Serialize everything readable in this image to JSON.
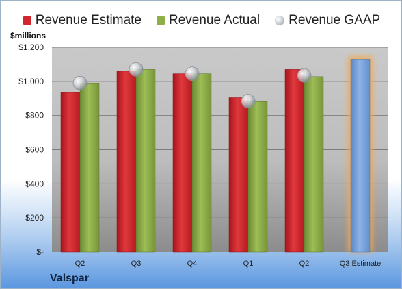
{
  "legend": {
    "estimate": "Revenue Estimate",
    "actual": "Revenue Actual",
    "gaap": "Revenue GAAP"
  },
  "units_label": "$millions",
  "company": "Valspar",
  "colors": {
    "estimate": "#d0262c",
    "actual": "#8fae4a",
    "gaap": "#b9bec6",
    "forecast": "#7aa3d9",
    "forecast_glow": "#f7a74a"
  },
  "chart_data": {
    "type": "bar",
    "categories": [
      "Q2",
      "Q3",
      "Q4",
      "Q1",
      "Q2",
      "Q3 Estimate"
    ],
    "ylim": [
      0,
      1200
    ],
    "yticks": [
      0,
      200,
      400,
      600,
      800,
      1000,
      1200
    ],
    "ytick_labels": [
      "$-",
      "$200",
      "$400",
      "$600",
      "$800",
      "$1,000",
      "$1,200"
    ],
    "series": [
      {
        "name": "Revenue Estimate",
        "values": [
          935,
          1060,
          1045,
          905,
          1070,
          null
        ]
      },
      {
        "name": "Revenue Actual",
        "values": [
          990,
          1070,
          1045,
          882,
          1028,
          null
        ]
      },
      {
        "name": "Revenue GAAP",
        "values": [
          990,
          1070,
          1045,
          885,
          1035,
          null
        ]
      }
    ],
    "forecast": {
      "category": "Q3 Estimate",
      "value": 1130
    },
    "grid": true,
    "legend_position": "top"
  }
}
